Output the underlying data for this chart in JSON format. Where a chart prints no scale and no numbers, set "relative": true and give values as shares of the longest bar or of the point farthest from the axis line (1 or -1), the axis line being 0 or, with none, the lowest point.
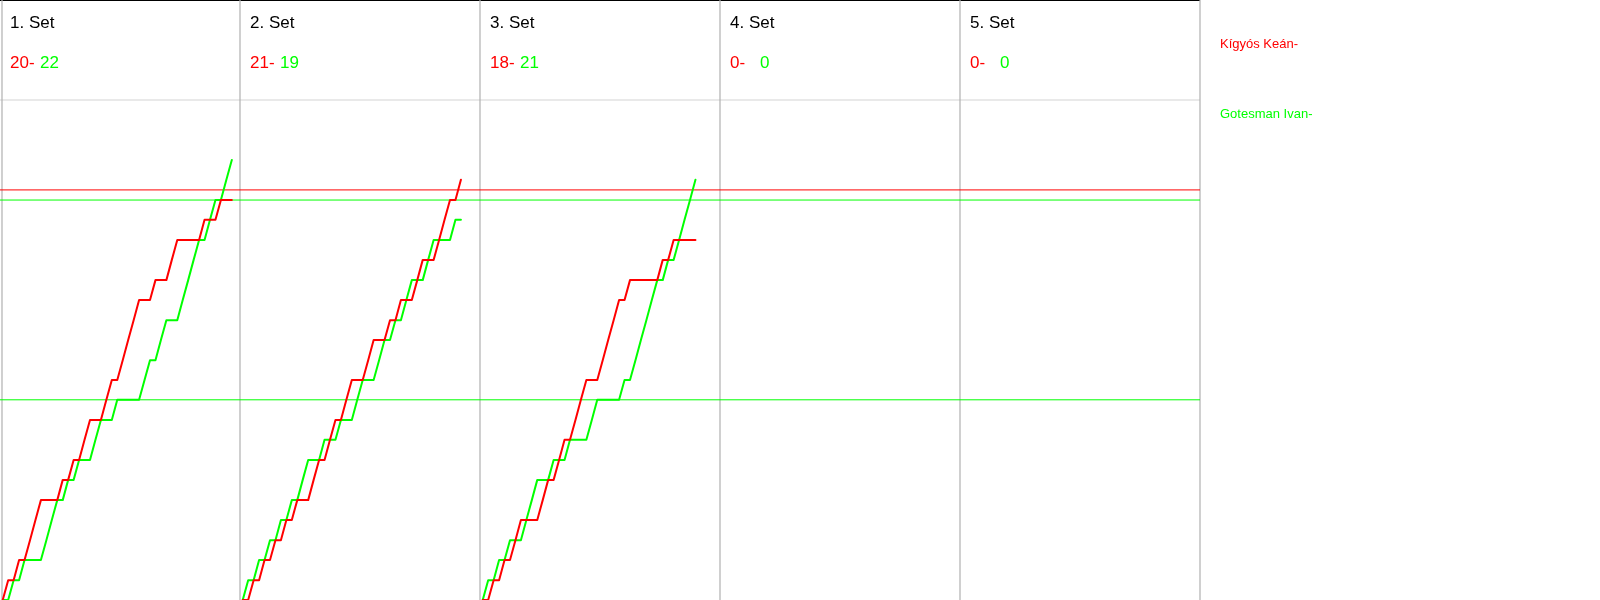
{
  "chart_data": {
    "type": "line",
    "relative": true,
    "legend": "right",
    "annotations": [
      "1. Set",
      "20-",
      "22",
      "2. Set",
      "21-",
      "19",
      "3. Set",
      "18-",
      "21",
      "4. Set",
      "0-",
      "0",
      "5. Set",
      "0-",
      "0"
    ],
    "categories": [
      null,
      null,
      null,
      null,
      null,
      null,
      null,
      null,
      null,
      null,
      null,
      null,
      null,
      null,
      null,
      null,
      null,
      null,
      null,
      null,
      null,
      null,
      null,
      null,
      null,
      null,
      null,
      null,
      null,
      null,
      null,
      null,
      null,
      null,
      null,
      null,
      null,
      null,
      null,
      null,
      null,
      null,
      null,
      null,
      null,
      null,
      null,
      null,
      null,
      null,
      null,
      null,
      null,
      null,
      null,
      null,
      null,
      null,
      null,
      null,
      null,
      null,
      null,
      null,
      null,
      null,
      null,
      null,
      null,
      null,
      null,
      null,
      null,
      null,
      null,
      null,
      null,
      null,
      null,
      null,
      null,
      null,
      null,
      null,
      null,
      null,
      null,
      null,
      null,
      null,
      null,
      null,
      null,
      null,
      null,
      null,
      null,
      null,
      null,
      null,
      null,
      null,
      null,
      null,
      null,
      null,
      null,
      null,
      null,
      null,
      null,
      null,
      null,
      null,
      null,
      null,
      null,
      null,
      null,
      null,
      null,
      null,
      null,
      null,
      null,
      null,
      null,
      null,
      null,
      null,
      null,
      null,
      null,
      null,
      null,
      null,
      null,
      null,
      null,
      null,
      null,
      null,
      null,
      null,
      null,
      null,
      null,
      null,
      null,
      null,
      null,
      null,
      null,
      null,
      null,
      null,
      null,
      null,
      null,
      null,
      null,
      null,
      null,
      null,
      null,
      null,
      null,
      null,
      null,
      null,
      null,
      null,
      null,
      null,
      null,
      null,
      null,
      null,
      null,
      null,
      null,
      null,
      null,
      null,
      null,
      null,
      null,
      null,
      null,
      null,
      null,
      null,
      null,
      null,
      null,
      null,
      null,
      null,
      null,
      null,
      null,
      null,
      null,
      null,
      null,
      null,
      null,
      null,
      null,
      null,
      null,
      null,
      null,
      null,
      null,
      null,
      null,
      null,
      null,
      null
    ],
    "series": [
      {
        "name": "Kígyós Keán-",
        "color": "#ff0000",
        "values": [
          0,
          0.045,
          0.045,
          0.091,
          0.091,
          0.136,
          0.182,
          0.227,
          0.227,
          0.227,
          0.227,
          0.273,
          0.273,
          0.318,
          0.318,
          0.364,
          0.409,
          0.409,
          0.409,
          0.455,
          0.5,
          0.5,
          0.545,
          0.591,
          0.636,
          0.682,
          0.682,
          0.682,
          0.727,
          0.727,
          0.727,
          0.773,
          0.818,
          0.818,
          0.818,
          0.818,
          0.818,
          0.864,
          0.864,
          0.864,
          0.909,
          0.909,
          0.909,
          null,
          null,
          null,
          null,
          null,
          null,
          null,
          null,
          null,
          null,
          null,
          null,
          null,
          null,
          null,
          null,
          null,
          null,
          null,
          null,
          null,
          null,
          null,
          null,
          null,
          null,
          null,
          null,
          null,
          null,
          null,
          null,
          null,
          null,
          null,
          null,
          null,
          null,
          null,
          null,
          null,
          null,
          null,
          null,
          null,
          null,
          null,
          null,
          null,
          null,
          null,
          null,
          null,
          null,
          null,
          null,
          null,
          null,
          null,
          null,
          null,
          null,
          null,
          null,
          null,
          null,
          null,
          null,
          null,
          null,
          null,
          null,
          null,
          null,
          null,
          null,
          null,
          null,
          null,
          null,
          null,
          null,
          null,
          null,
          null,
          null,
          null,
          null,
          null,
          null,
          null,
          null,
          null,
          null,
          null,
          null,
          null,
          null,
          null,
          null,
          null,
          null,
          null,
          null,
          null,
          null,
          null,
          null,
          null,
          null,
          null,
          null,
          null,
          null,
          null,
          null,
          null,
          null,
          null,
          null,
          null,
          null,
          null,
          null,
          null,
          null,
          null,
          null,
          null,
          null,
          null,
          null,
          null,
          null,
          null,
          null,
          null,
          null,
          null,
          null,
          null,
          null,
          null,
          null,
          null,
          null,
          null,
          null,
          null,
          null,
          null,
          null,
          null,
          null,
          null,
          null,
          null,
          null,
          null,
          null,
          null,
          null,
          null,
          null,
          null,
          null,
          null,
          null,
          null,
          null,
          null,
          null,
          null,
          null,
          null,
          null,
          null
        ]
      },
      {
        "name": "Gotesman Ivan-",
        "color": "#00ff00",
        "values": [
          0,
          0,
          0.045,
          0.045,
          0.091,
          0.091,
          0.091,
          0.091,
          0.136,
          0.182,
          0.227,
          0.227,
          0.273,
          0.273,
          0.318,
          0.318,
          0.318,
          0.364,
          0.409,
          0.409,
          0.409,
          0.455,
          0.455,
          0.455,
          0.455,
          0.455,
          0.5,
          0.545,
          0.545,
          0.591,
          0.636,
          0.636,
          0.636,
          0.682,
          0.727,
          0.773,
          0.818,
          0.818,
          0.864,
          0.909,
          0.909,
          0.955,
          1,
          null,
          null,
          null,
          null,
          null,
          null,
          null,
          null,
          null,
          null,
          null,
          null,
          null,
          null,
          null,
          null,
          null,
          null,
          null,
          null,
          null,
          null,
          null,
          null,
          null,
          null,
          null,
          null,
          null,
          null,
          null,
          null,
          null,
          null,
          null,
          null,
          null,
          null,
          null,
          null,
          null,
          null,
          null,
          null,
          null,
          null,
          null,
          null,
          null,
          null,
          null,
          null,
          null,
          null,
          null,
          null,
          null,
          null,
          null,
          null,
          null,
          null,
          null,
          null,
          null,
          null,
          null,
          null,
          null,
          null,
          null,
          null,
          null,
          null,
          null,
          null,
          null,
          null,
          null,
          null,
          null,
          null,
          null,
          null,
          null,
          null,
          null,
          null,
          null,
          null,
          null,
          null,
          null,
          null,
          null,
          null,
          null,
          null,
          null,
          null,
          null,
          null,
          null,
          null,
          null,
          null,
          null,
          null,
          null,
          null,
          null,
          null,
          null,
          null,
          null,
          null,
          null,
          null,
          null,
          null,
          null,
          null,
          null,
          null,
          null,
          null,
          null,
          null,
          null,
          null,
          null,
          null,
          null,
          null,
          null,
          null,
          null,
          null,
          null,
          null,
          null,
          null,
          null,
          null,
          null,
          null,
          null,
          null,
          null,
          null,
          null,
          null,
          null,
          null,
          null,
          null,
          null,
          null,
          null,
          null,
          null,
          null,
          null,
          null,
          null,
          null,
          null,
          null,
          null,
          null,
          null,
          null,
          null,
          null,
          null,
          null,
          null
        ]
      },
      {
        "color": "#ff0000",
        "values": [
          null,
          null,
          null,
          null,
          null,
          null,
          null,
          null,
          null,
          null,
          null,
          null,
          null,
          null,
          null,
          null,
          null,
          null,
          null,
          null,
          null,
          null,
          null,
          null,
          null,
          null,
          null,
          null,
          null,
          null,
          null,
          null,
          null,
          null,
          null,
          null,
          null,
          null,
          null,
          null,
          null,
          null,
          null,
          null,
          0,
          0,
          0.045,
          0.045,
          0.091,
          0.091,
          0.136,
          0.136,
          0.182,
          0.182,
          0.227,
          0.227,
          0.227,
          0.273,
          0.318,
          0.318,
          0.364,
          0.409,
          0.409,
          0.455,
          0.5,
          0.5,
          0.5,
          0.545,
          0.591,
          0.591,
          0.591,
          0.636,
          0.636,
          0.682,
          0.682,
          0.682,
          0.727,
          0.773,
          0.773,
          0.773,
          0.818,
          0.864,
          0.909,
          0.909,
          0.955,
          null,
          null,
          null,
          null,
          null,
          null,
          null,
          null,
          null,
          null,
          null,
          null,
          null,
          null,
          null,
          null,
          null,
          null,
          null,
          null,
          null,
          null,
          null,
          null,
          null,
          null,
          null,
          null,
          null,
          null,
          null,
          null,
          null,
          null,
          null,
          null,
          null,
          null,
          null,
          null,
          null,
          null,
          null,
          null,
          null,
          null,
          null,
          null,
          null,
          null,
          null,
          null,
          null,
          null,
          null,
          null,
          null,
          null,
          null,
          null,
          null,
          null,
          null,
          null,
          null,
          null,
          null,
          null,
          null,
          null,
          null,
          null,
          null,
          null,
          null,
          null,
          null,
          null,
          null,
          null,
          null,
          null,
          null,
          null,
          null,
          null,
          null,
          null,
          null,
          null,
          null,
          null,
          null,
          null,
          null,
          null,
          null,
          null,
          null,
          null,
          null,
          null,
          null,
          null,
          null,
          null,
          null,
          null,
          null,
          null,
          null,
          null,
          null,
          null,
          null,
          null,
          null,
          null,
          null,
          null,
          null,
          null,
          null,
          null,
          null,
          null,
          null,
          null,
          null,
          null,
          null,
          null,
          null,
          null,
          null
        ]
      },
      {
        "color": "#00ff00",
        "values": [
          null,
          null,
          null,
          null,
          null,
          null,
          null,
          null,
          null,
          null,
          null,
          null,
          null,
          null,
          null,
          null,
          null,
          null,
          null,
          null,
          null,
          null,
          null,
          null,
          null,
          null,
          null,
          null,
          null,
          null,
          null,
          null,
          null,
          null,
          null,
          null,
          null,
          null,
          null,
          null,
          null,
          null,
          null,
          null,
          0,
          0.045,
          0.045,
          0.091,
          0.091,
          0.136,
          0.136,
          0.182,
          0.182,
          0.227,
          0.227,
          0.273,
          0.318,
          0.318,
          0.318,
          0.364,
          0.364,
          0.364,
          0.409,
          0.409,
          0.409,
          0.455,
          0.5,
          0.5,
          0.5,
          0.545,
          0.591,
          0.591,
          0.636,
          0.636,
          0.682,
          0.727,
          0.727,
          0.727,
          0.773,
          0.818,
          0.818,
          0.818,
          0.818,
          0.864,
          0.864,
          null,
          null,
          null,
          null,
          null,
          null,
          null,
          null,
          null,
          null,
          null,
          null,
          null,
          null,
          null,
          null,
          null,
          null,
          null,
          null,
          null,
          null,
          null,
          null,
          null,
          null,
          null,
          null,
          null,
          null,
          null,
          null,
          null,
          null,
          null,
          null,
          null,
          null,
          null,
          null,
          null,
          null,
          null,
          null,
          null,
          null,
          null,
          null,
          null,
          null,
          null,
          null,
          null,
          null,
          null,
          null,
          null,
          null,
          null,
          null,
          null,
          null,
          null,
          null,
          null,
          null,
          null,
          null,
          null,
          null,
          null,
          null,
          null,
          null,
          null,
          null,
          null,
          null,
          null,
          null,
          null,
          null,
          null,
          null,
          null,
          null,
          null,
          null,
          null,
          null,
          null,
          null,
          null,
          null,
          null,
          null,
          null,
          null,
          null,
          null,
          null,
          null,
          null,
          null,
          null,
          null,
          null,
          null,
          null,
          null,
          null,
          null,
          null,
          null,
          null,
          null,
          null,
          null,
          null,
          null,
          null,
          null,
          null,
          null,
          null,
          null,
          null,
          null,
          null,
          null,
          null,
          null,
          null,
          null,
          null
        ]
      },
      {
        "color": "#ff0000",
        "values": [
          null,
          null,
          null,
          null,
          null,
          null,
          null,
          null,
          null,
          null,
          null,
          null,
          null,
          null,
          null,
          null,
          null,
          null,
          null,
          null,
          null,
          null,
          null,
          null,
          null,
          null,
          null,
          null,
          null,
          null,
          null,
          null,
          null,
          null,
          null,
          null,
          null,
          null,
          null,
          null,
          null,
          null,
          null,
          null,
          null,
          null,
          null,
          null,
          null,
          null,
          null,
          null,
          null,
          null,
          null,
          null,
          null,
          null,
          null,
          null,
          null,
          null,
          null,
          null,
          null,
          null,
          null,
          null,
          null,
          null,
          null,
          null,
          null,
          null,
          null,
          null,
          null,
          null,
          null,
          null,
          null,
          null,
          null,
          null,
          null,
          null,
          null,
          null,
          0,
          0,
          0.045,
          0.045,
          0.091,
          0.091,
          0.136,
          0.182,
          0.182,
          0.182,
          0.182,
          0.227,
          0.273,
          0.273,
          0.318,
          0.364,
          0.364,
          0.409,
          0.455,
          0.5,
          0.5,
          0.5,
          0.545,
          0.591,
          0.636,
          0.682,
          0.682,
          0.727,
          0.727,
          0.727,
          0.727,
          0.727,
          0.727,
          0.773,
          0.773,
          0.818,
          0.818,
          0.818,
          0.818,
          0.818,
          null,
          null,
          null,
          null,
          null,
          null,
          null,
          null,
          null,
          null,
          null,
          null,
          null,
          null,
          null,
          null,
          null,
          null,
          null,
          null,
          null,
          null,
          null,
          null,
          null,
          null,
          null,
          null,
          null,
          null,
          null,
          null,
          null,
          null,
          null,
          null,
          null,
          null,
          null,
          null,
          null,
          null,
          null,
          null,
          null,
          null,
          null,
          null,
          null,
          null,
          null,
          null,
          null,
          null,
          null,
          null,
          null,
          null,
          null,
          null,
          null,
          null,
          null,
          null,
          null,
          null,
          null,
          null,
          null,
          null,
          null,
          null,
          null,
          null,
          null,
          null,
          null,
          null,
          null,
          null,
          null,
          null,
          null,
          null,
          null,
          null,
          null,
          null,
          null,
          null,
          null,
          null
        ]
      },
      {
        "color": "#00ff00",
        "values": [
          null,
          null,
          null,
          null,
          null,
          null,
          null,
          null,
          null,
          null,
          null,
          null,
          null,
          null,
          null,
          null,
          null,
          null,
          null,
          null,
          null,
          null,
          null,
          null,
          null,
          null,
          null,
          null,
          null,
          null,
          null,
          null,
          null,
          null,
          null,
          null,
          null,
          null,
          null,
          null,
          null,
          null,
          null,
          null,
          null,
          null,
          null,
          null,
          null,
          null,
          null,
          null,
          null,
          null,
          null,
          null,
          null,
          null,
          null,
          null,
          null,
          null,
          null,
          null,
          null,
          null,
          null,
          null,
          null,
          null,
          null,
          null,
          null,
          null,
          null,
          null,
          null,
          null,
          null,
          null,
          null,
          null,
          null,
          null,
          null,
          null,
          null,
          null,
          0,
          0.045,
          0.045,
          0.091,
          0.091,
          0.136,
          0.136,
          0.136,
          0.182,
          0.227,
          0.273,
          0.273,
          0.273,
          0.318,
          0.318,
          0.318,
          0.364,
          0.364,
          0.364,
          0.364,
          0.409,
          0.455,
          0.455,
          0.455,
          0.455,
          0.455,
          0.5,
          0.5,
          0.545,
          0.591,
          0.636,
          0.682,
          0.727,
          0.727,
          0.773,
          0.773,
          0.818,
          0.864,
          0.909,
          0.955,
          null,
          null,
          null,
          null,
          null,
          null,
          null,
          null,
          null,
          null,
          null,
          null,
          null,
          null,
          null,
          null,
          null,
          null,
          null,
          null,
          null,
          null,
          null,
          null,
          null,
          null,
          null,
          null,
          null,
          null,
          null,
          null,
          null,
          null,
          null,
          null,
          null,
          null,
          null,
          null,
          null,
          null,
          null,
          null,
          null,
          null,
          null,
          null,
          null,
          null,
          null,
          null,
          null,
          null,
          null,
          null,
          null,
          null,
          null,
          null,
          null,
          null,
          null,
          null,
          null,
          null,
          null,
          null,
          null,
          null,
          null,
          null,
          null,
          null,
          null,
          null,
          null,
          null,
          null,
          null,
          null,
          null,
          null,
          null,
          null,
          null,
          null,
          null,
          null,
          null,
          null,
          null
        ]
      }
    ],
    "ref_lines": [
      {
        "axis": "y",
        "value": 0.932,
        "color": "#ff0000"
      },
      {
        "axis": "y",
        "value": 0.909,
        "color": "#00ff00"
      },
      {
        "axis": "y",
        "value": 0.455,
        "color": "#00ff00"
      }
    ]
  }
}
